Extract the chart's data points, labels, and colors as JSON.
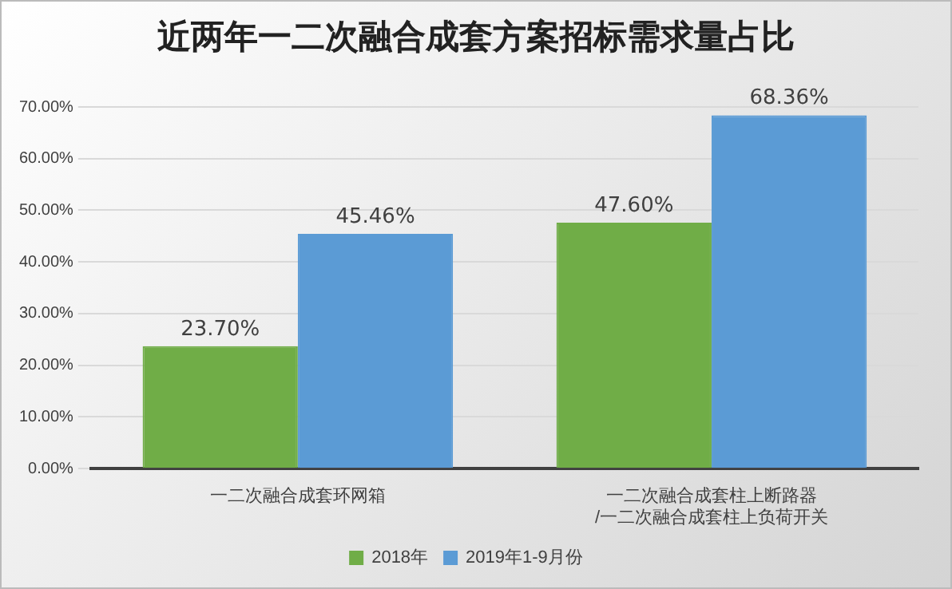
{
  "chart_data": {
    "type": "bar",
    "title": "近两年一二次融合成套方案招标需求量占比",
    "categories": [
      "一二次融合成套环网箱",
      "一二次融合成套柱上断路器/一二次融合成套柱上负荷开关"
    ],
    "series": [
      {
        "name": "2018年",
        "color": "#70ad47",
        "values": [
          23.7,
          47.6
        ],
        "value_labels": [
          "23.70%",
          "47.60%"
        ]
      },
      {
        "name": "2019年1-9月份",
        "color": "#5b9bd5",
        "values": [
          45.46,
          68.36
        ],
        "value_labels": [
          "45.46%",
          "68.36%"
        ]
      }
    ],
    "ylim": [
      0,
      70
    ],
    "yticks": [
      {
        "value": 0,
        "label": "0.00%"
      },
      {
        "value": 10,
        "label": "10.00%"
      },
      {
        "value": 20,
        "label": "20.00%"
      },
      {
        "value": 30,
        "label": "30.00%"
      },
      {
        "value": 40,
        "label": "40.00%"
      },
      {
        "value": 50,
        "label": "50.00%"
      },
      {
        "value": 60,
        "label": "60.00%"
      },
      {
        "value": 70,
        "label": "70.00%"
      }
    ],
    "grid": "y",
    "legend": "bottom"
  }
}
